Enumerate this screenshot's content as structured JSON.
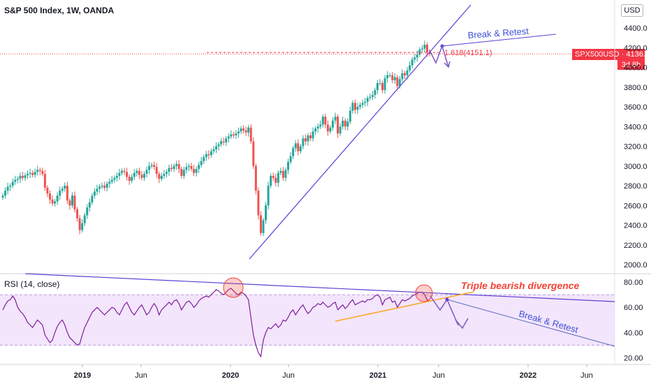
{
  "header": {
    "title": "S&P 500 Index, 1W, OANDA",
    "currency": "USD"
  },
  "price_label": {
    "symbol": "SPX500USD",
    "value": "4136.6",
    "time_left": "3d 8h",
    "color": "#f23645"
  },
  "fib_label": "1.618(4151.1)",
  "annotations": {
    "retest_price": "Break & Retest",
    "retest_rsi": "Break & Retest",
    "divergence": "Triple bearish divergence"
  },
  "rsi": {
    "label": "RSI (14, close)",
    "overbought": 70,
    "oversold": 30
  },
  "colors": {
    "up": "#26a69a",
    "down": "#ef5350",
    "rsi_line": "#7e1e9e",
    "trend": "#5b3fd6",
    "divergence": "#f44336",
    "rsi_band": "#f3e5fb"
  },
  "chart_data": [
    {
      "type": "candlestick",
      "title": "S&P 500 Index, 1W, OANDA",
      "ylim": [
        1950,
        4500
      ],
      "y_ticks": [
        4400,
        4200,
        4000,
        3800,
        3600,
        3400,
        3200,
        3000,
        2800,
        2600,
        2400,
        2200,
        2000
      ],
      "y_tick_labels": [
        "4400.0",
        "4200.0",
        "4000.0",
        "3800.0",
        "3600.0",
        "3400.0",
        "3200.0",
        "3000.0",
        "2800.0",
        "2600.0",
        "2400.0",
        "2200.0",
        "2000.0"
      ],
      "x_tick_labels": [
        "2019",
        "Jun",
        "2020",
        "Jun",
        "2021",
        "Jun",
        "2022",
        "Jun"
      ],
      "current_price": 4136.6,
      "fib_level": 4151.1,
      "closes": [
        2700,
        2750,
        2790,
        2800,
        2840,
        2860,
        2870,
        2900,
        2880,
        2905,
        2920,
        2930,
        2910,
        2940,
        2960,
        2950,
        2920,
        2780,
        2720,
        2660,
        2620,
        2640,
        2700,
        2750,
        2770,
        2800,
        2650,
        2600,
        2700,
        2560,
        2470,
        2350,
        2420,
        2500,
        2580,
        2630,
        2700,
        2740,
        2770,
        2790,
        2800,
        2780,
        2820,
        2840,
        2860,
        2880,
        2900,
        2930,
        2950,
        2940,
        2890,
        2850,
        2890,
        2930,
        2950,
        2910,
        2880,
        2920,
        2960,
        3000,
        3010,
        2990,
        2920,
        2870,
        2900,
        2920,
        2940,
        2980,
        2970,
        3000,
        3020,
        2970,
        2900,
        2960,
        2990,
        3000,
        2970,
        2930,
        2970,
        3010,
        3050,
        3090,
        3120,
        3110,
        3150,
        3170,
        3200,
        3220,
        3250,
        3240,
        3280,
        3300,
        3320,
        3310,
        3330,
        3350,
        3380,
        3360,
        3340,
        3390,
        3250,
        3000,
        2750,
        2500,
        2320,
        2450,
        2600,
        2800,
        2900,
        2880,
        2830,
        2930,
        2950,
        2880,
        2960,
        3040,
        3100,
        3180,
        3230,
        3150,
        3200,
        3280,
        3250,
        3310,
        3280,
        3350,
        3380,
        3400,
        3420,
        3500,
        3420,
        3350,
        3390,
        3460,
        3500,
        3330,
        3400,
        3460,
        3400,
        3450,
        3560,
        3640,
        3570,
        3600,
        3620,
        3640,
        3650,
        3690,
        3700,
        3720,
        3770,
        3840,
        3840,
        3770,
        3890,
        3920,
        3920,
        3870,
        3900,
        3810,
        3880,
        3940,
        3920,
        3970,
        4020,
        4080,
        4100,
        4130,
        4180,
        4190,
        4230,
        4150,
        4136.6
      ],
      "rsi_values": [
        58,
        62,
        65,
        66,
        69,
        66,
        60,
        57,
        55,
        52,
        48,
        46,
        44,
        47,
        50,
        48,
        46,
        38,
        35,
        32,
        34,
        40,
        45,
        48,
        50,
        46,
        40,
        36,
        34,
        32,
        30,
        31,
        38,
        44,
        48,
        52,
        56,
        58,
        60,
        58,
        56,
        54,
        56,
        58,
        60,
        59,
        56,
        54,
        58,
        62,
        64,
        60,
        56,
        54,
        57,
        60,
        62,
        58,
        54,
        56,
        60,
        63,
        60,
        54,
        58,
        60,
        62,
        64,
        62,
        65,
        66,
        63,
        58,
        61,
        64,
        65,
        63,
        60,
        62,
        65,
        67,
        68,
        69,
        68,
        70,
        72,
        74,
        73,
        71,
        70,
        72,
        74,
        75,
        73,
        71,
        70,
        72,
        71,
        69,
        66,
        52,
        38,
        30,
        24,
        21,
        34,
        40,
        44,
        43,
        45,
        47,
        44,
        46,
        50,
        49,
        52,
        56,
        58,
        54,
        57,
        60,
        62,
        58,
        55,
        57,
        60,
        61,
        63,
        62,
        64,
        62,
        60,
        61,
        63,
        64,
        58,
        60,
        62,
        59,
        61,
        64,
        66,
        62,
        63,
        64,
        65,
        64,
        66,
        66,
        67,
        69,
        70,
        68,
        62,
        66,
        67,
        68,
        64,
        65,
        60,
        63,
        66,
        65,
        66,
        67,
        69,
        70,
        71,
        72,
        72,
        70,
        66,
        65
      ],
      "rsi_ylim": [
        15,
        90
      ],
      "rsi_y_ticks": [
        80,
        60,
        40,
        20
      ],
      "rsi_y_tick_labels": [
        "80.00",
        "60.00",
        "40.00",
        "20.00"
      ]
    }
  ]
}
